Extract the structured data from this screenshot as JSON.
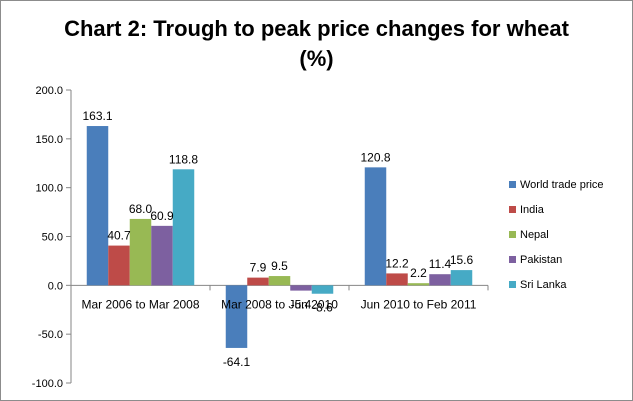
{
  "chart_data": {
    "type": "bar",
    "title_line1": "Chart 2: Trough to peak price changes for wheat",
    "title_line2": "(%)",
    "categories": [
      "Mar 2006 to Mar 2008",
      "Mar 2008 to Jun 2010",
      "Jun 2010 to Feb 2011"
    ],
    "series": [
      {
        "name": "World trade price",
        "color": "#4a7ebb",
        "values": [
          163.1,
          -64.1,
          120.8
        ],
        "labels": [
          "163.1",
          "-64.1",
          "120.8"
        ]
      },
      {
        "name": "India",
        "color": "#be4b48",
        "values": [
          40.7,
          7.9,
          12.2
        ],
        "labels": [
          "40.7",
          "7.9",
          "12.2"
        ]
      },
      {
        "name": "Nepal",
        "color": "#98b954",
        "values": [
          68.0,
          9.5,
          2.2
        ],
        "labels": [
          "68.0",
          "9.5",
          "2.2"
        ]
      },
      {
        "name": "Pakistan",
        "color": "#7d60a0",
        "values": [
          60.9,
          -5.4,
          11.4
        ],
        "labels": [
          "60.9",
          "-5.4",
          "11.4"
        ]
      },
      {
        "name": "Sri Lanka",
        "color": "#46aac5",
        "values": [
          118.8,
          -8.6,
          15.6
        ],
        "labels": [
          "118.8",
          "-8.6",
          "15.6"
        ]
      }
    ],
    "ylim": [
      -100,
      200
    ],
    "yticks": [
      "200.0",
      "150.0",
      "100.0",
      "50.0",
      "0.0",
      "-50.0",
      "-100.0"
    ],
    "grid": false,
    "legend": "right"
  }
}
